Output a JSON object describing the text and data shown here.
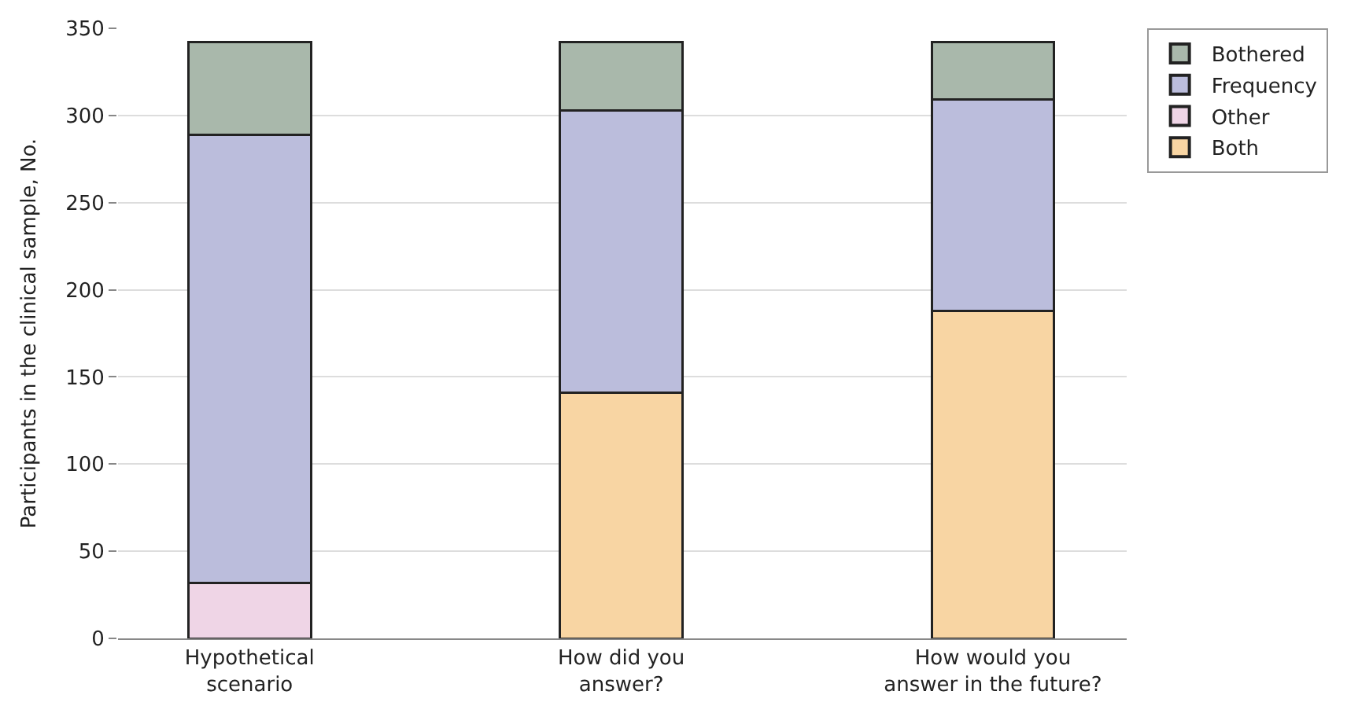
{
  "chart_data": {
    "type": "bar",
    "stacked": true,
    "ylabel": "Participants in the clinical sample, No.",
    "categories": [
      "Hypothetical\nscenario",
      "How did you\nanswer?",
      "How would you\nanswer in the future?"
    ],
    "series": [
      {
        "name": "Both",
        "color": "#f8d5a3",
        "values": [
          0,
          141,
          188
        ]
      },
      {
        "name": "Other",
        "color": "#efd5e6",
        "values": [
          32,
          0,
          0
        ]
      },
      {
        "name": "Frequency",
        "color": "#bbbddc",
        "values": [
          257,
          162,
          121
        ]
      },
      {
        "name": "Bothered",
        "color": "#a9b8ab",
        "values": [
          53,
          39,
          33
        ]
      }
    ],
    "ylim": [
      0,
      350
    ],
    "yticks": [
      0,
      50,
      100,
      150,
      200,
      250,
      300,
      350
    ],
    "grid": "y",
    "legend": "top right"
  }
}
